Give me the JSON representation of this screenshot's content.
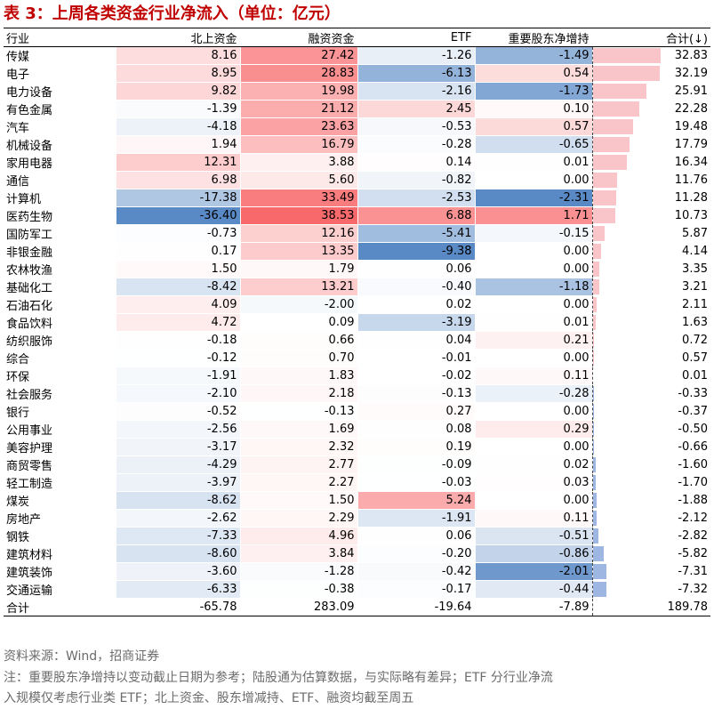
{
  "title": "表 3：上周各类资金行业净流入（单位：亿元）",
  "columns": [
    "行业",
    "北上资金",
    "融资资金",
    "ETF",
    "重要股东净增持",
    "合计(↓)"
  ],
  "rows": [
    {
      "industry": "传媒",
      "north": "8.16",
      "margin": "27.42",
      "etf": "-1.26",
      "holder": "-1.49",
      "total": "32.83"
    },
    {
      "industry": "电子",
      "north": "8.95",
      "margin": "28.83",
      "etf": "-6.13",
      "holder": "0.54",
      "total": "32.19"
    },
    {
      "industry": "电力设备",
      "north": "9.82",
      "margin": "19.98",
      "etf": "-2.16",
      "holder": "-1.73",
      "total": "25.91"
    },
    {
      "industry": "有色金属",
      "north": "-1.39",
      "margin": "21.12",
      "etf": "2.45",
      "holder": "0.10",
      "total": "22.28"
    },
    {
      "industry": "汽车",
      "north": "-4.18",
      "margin": "23.63",
      "etf": "-0.53",
      "holder": "0.57",
      "total": "19.48"
    },
    {
      "industry": "机械设备",
      "north": "1.94",
      "margin": "16.79",
      "etf": "-0.28",
      "holder": "-0.65",
      "total": "17.79"
    },
    {
      "industry": "家用电器",
      "north": "12.31",
      "margin": "3.88",
      "etf": "0.14",
      "holder": "0.01",
      "total": "16.34"
    },
    {
      "industry": "通信",
      "north": "6.98",
      "margin": "5.60",
      "etf": "-0.82",
      "holder": "0.00",
      "total": "11.76"
    },
    {
      "industry": "计算机",
      "north": "-17.38",
      "margin": "33.49",
      "etf": "-2.53",
      "holder": "-2.31",
      "total": "11.28"
    },
    {
      "industry": "医药生物",
      "north": "-36.40",
      "margin": "38.53",
      "etf": "6.88",
      "holder": "1.71",
      "total": "10.73"
    },
    {
      "industry": "国防军工",
      "north": "-0.73",
      "margin": "12.16",
      "etf": "-5.41",
      "holder": "-0.15",
      "total": "5.87"
    },
    {
      "industry": "非银金融",
      "north": "0.17",
      "margin": "13.35",
      "etf": "-9.38",
      "holder": "0.00",
      "total": "4.14"
    },
    {
      "industry": "农林牧渔",
      "north": "1.50",
      "margin": "1.79",
      "etf": "0.06",
      "holder": "0.00",
      "total": "3.35"
    },
    {
      "industry": "基础化工",
      "north": "-8.42",
      "margin": "13.21",
      "etf": "-0.40",
      "holder": "-1.18",
      "total": "3.21"
    },
    {
      "industry": "石油石化",
      "north": "4.09",
      "margin": "-2.00",
      "etf": "0.02",
      "holder": "0.00",
      "total": "2.11"
    },
    {
      "industry": "食品饮料",
      "north": "4.72",
      "margin": "0.09",
      "etf": "-3.19",
      "holder": "0.01",
      "total": "1.63"
    },
    {
      "industry": "纺织服饰",
      "north": "-0.18",
      "margin": "0.66",
      "etf": "0.04",
      "holder": "0.21",
      "total": "0.72"
    },
    {
      "industry": "综合",
      "north": "-0.12",
      "margin": "0.70",
      "etf": "-0.01",
      "holder": "0.00",
      "total": "0.57"
    },
    {
      "industry": "环保",
      "north": "-1.91",
      "margin": "1.83",
      "etf": "-0.02",
      "holder": "0.11",
      "total": "0.01"
    },
    {
      "industry": "社会服务",
      "north": "-2.10",
      "margin": "2.18",
      "etf": "-0.13",
      "holder": "-0.28",
      "total": "-0.33"
    },
    {
      "industry": "银行",
      "north": "-0.52",
      "margin": "-0.13",
      "etf": "0.27",
      "holder": "0.00",
      "total": "-0.37"
    },
    {
      "industry": "公用事业",
      "north": "-2.56",
      "margin": "1.69",
      "etf": "0.08",
      "holder": "0.29",
      "total": "-0.50"
    },
    {
      "industry": "美容护理",
      "north": "-3.17",
      "margin": "2.32",
      "etf": "0.19",
      "holder": "0.00",
      "total": "-0.66"
    },
    {
      "industry": "商贸零售",
      "north": "-4.29",
      "margin": "2.77",
      "etf": "-0.09",
      "holder": "0.02",
      "total": "-1.60"
    },
    {
      "industry": "轻工制造",
      "north": "-3.97",
      "margin": "2.27",
      "etf": "-0.03",
      "holder": "0.03",
      "total": "-1.70"
    },
    {
      "industry": "煤炭",
      "north": "-8.62",
      "margin": "1.50",
      "etf": "5.24",
      "holder": "0.00",
      "total": "-1.88"
    },
    {
      "industry": "房地产",
      "north": "-2.62",
      "margin": "2.29",
      "etf": "-1.91",
      "holder": "0.11",
      "total": "-2.12"
    },
    {
      "industry": "钢铁",
      "north": "-7.33",
      "margin": "4.96",
      "etf": "0.06",
      "holder": "-0.51",
      "total": "-2.82"
    },
    {
      "industry": "建筑材料",
      "north": "-8.60",
      "margin": "3.84",
      "etf": "-0.20",
      "holder": "-0.86",
      "total": "-5.82"
    },
    {
      "industry": "建筑装饰",
      "north": "-3.60",
      "margin": "-1.28",
      "etf": "-0.42",
      "holder": "-2.01",
      "total": "-7.31"
    },
    {
      "industry": "交通运输",
      "north": "-6.33",
      "margin": "-0.38",
      "etf": "-0.17",
      "holder": "-0.44",
      "total": "-7.32"
    }
  ],
  "totals": {
    "industry": "合计",
    "north": "-65.78",
    "margin": "283.09",
    "etf": "-19.64",
    "holder": "-7.89",
    "total": "189.78"
  },
  "source": "资料来源：Wind，招商证券",
  "note_line1": "注：重要股东净增持以变动截止日期为参考；陆股通为估算数据，与实际略有差异；ETF 分行业净流",
  "note_line2": "入规模仅考虑行业类 ETF；北上资金、股东增减持、ETF、融资均截至周五",
  "colors": {
    "title": "#c00000",
    "positive": "#f8696b",
    "negative": "#5a8ac6",
    "bar_pos": "#f9c5c9",
    "bar_neg": "#9db7e2",
    "note": "#6b6b6b"
  }
}
